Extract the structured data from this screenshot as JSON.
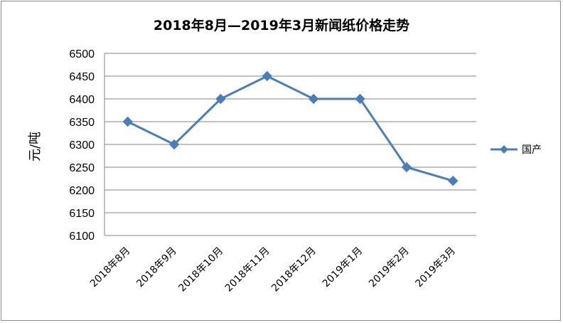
{
  "chart_data": {
    "type": "line",
    "title": "2018年8月—2019年3月新闻纸价格走势",
    "xlabel": "",
    "ylabel": "元/吨",
    "categories": [
      "2018年8月",
      "2018年9月",
      "2018年10月",
      "2018年11月",
      "2018年12月",
      "2019年1月",
      "2019年2月",
      "2019年3月"
    ],
    "series": [
      {
        "name": "国产",
        "values": [
          6350,
          6300,
          6400,
          6450,
          6400,
          6400,
          6250,
          6220
        ],
        "color": "#4a7ebb"
      }
    ],
    "ylim": [
      6100,
      6500
    ],
    "yticks": [
      "6100",
      "6150",
      "6200",
      "6250",
      "6300",
      "6350",
      "6400",
      "6450",
      "6500"
    ],
    "grid": true,
    "legend_position": "right",
    "marker": "diamond"
  }
}
